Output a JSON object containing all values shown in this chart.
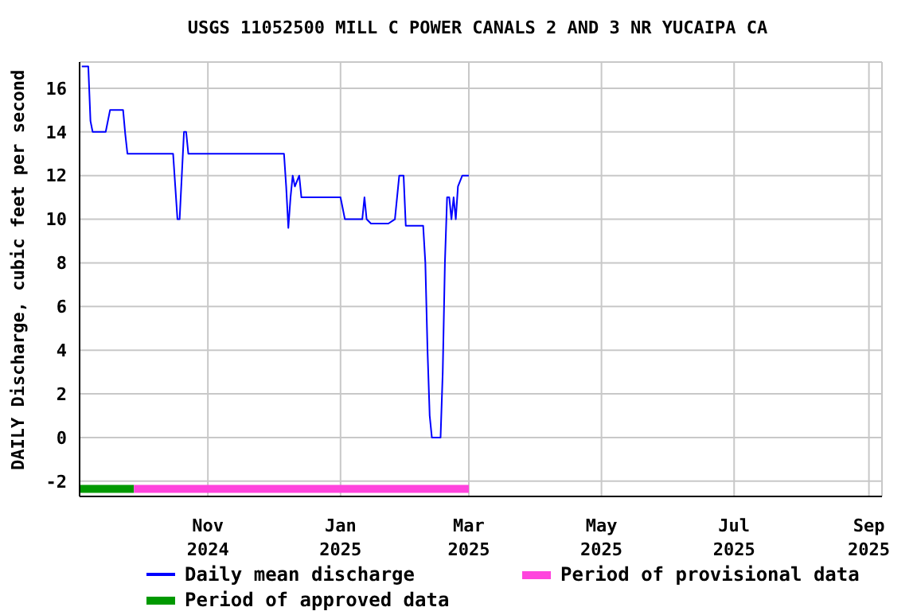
{
  "chart_data": {
    "type": "line",
    "title": "USGS 11052500 MILL C POWER CANALS 2 AND 3 NR YUCAIPA CA",
    "ylabel": "DAILY Discharge, cubic feet per second",
    "x": [
      "2024-09-04",
      "2024-09-07",
      "2024-09-08",
      "2024-09-09",
      "2024-09-15",
      "2024-09-17",
      "2024-09-23",
      "2024-09-24",
      "2024-09-25",
      "2024-10-16",
      "2024-10-17",
      "2024-10-18",
      "2024-10-19",
      "2024-10-20",
      "2024-10-21",
      "2024-10-22",
      "2024-10-23",
      "2024-12-06",
      "2024-12-07",
      "2024-12-08",
      "2024-12-09",
      "2024-12-10",
      "2024-12-11",
      "2024-12-13",
      "2024-12-14",
      "2025-01-01",
      "2025-01-03",
      "2025-01-11",
      "2025-01-12",
      "2025-01-13",
      "2025-01-15",
      "2025-01-23",
      "2025-01-26",
      "2025-01-27",
      "2025-01-28",
      "2025-01-30",
      "2025-01-31",
      "2025-02-08",
      "2025-02-09",
      "2025-02-10",
      "2025-02-11",
      "2025-02-12",
      "2025-02-16",
      "2025-02-17",
      "2025-02-18",
      "2025-02-19",
      "2025-02-20",
      "2025-02-21",
      "2025-02-22",
      "2025-02-23",
      "2025-02-24",
      "2025-02-26",
      "2025-03-01"
    ],
    "series": [
      {
        "name": "Daily mean discharge",
        "color": "#0000ff",
        "values": [
          17,
          17,
          14.5,
          14,
          14,
          15,
          15,
          13.9,
          13,
          13,
          11.5,
          10,
          10,
          12,
          14,
          14,
          13,
          13,
          11.5,
          9.6,
          11,
          12,
          11.5,
          12,
          11,
          11,
          10,
          10,
          11,
          10,
          9.8,
          9.8,
          10,
          11,
          12,
          12,
          9.7,
          9.7,
          8,
          4,
          1,
          0,
          0,
          3,
          8,
          11,
          11,
          10,
          11,
          10,
          11.5,
          12,
          12
        ]
      },
      {
        "name": "Period of approved data",
        "color": "#009900",
        "x": [
          "2024-09-03",
          "2024-09-28"
        ],
        "values": [
          -2.35,
          -2.35
        ]
      },
      {
        "name": "Period of provisional data",
        "color": "#ff44dd",
        "x": [
          "2024-09-28",
          "2025-03-01"
        ],
        "values": [
          -2.35,
          -2.35
        ]
      }
    ],
    "xlim": [
      "2024-09-03",
      "2025-09-07"
    ],
    "xticks": [
      {
        "value": "2024-11-01",
        "label": "Nov 2024"
      },
      {
        "value": "2025-01-01",
        "label": "Jan 2025"
      },
      {
        "value": "2025-03-01",
        "label": "Mar 2025"
      },
      {
        "value": "2025-05-01",
        "label": "May 2025"
      },
      {
        "value": "2025-07-01",
        "label": "Jul 2025"
      },
      {
        "value": "2025-09-01",
        "label": "Sep 2025"
      }
    ],
    "ylim": [
      -2.7,
      17.2
    ],
    "yticks": [
      -2,
      0,
      2,
      4,
      6,
      8,
      10,
      12,
      14,
      16
    ],
    "grid": true,
    "legend": "bottom",
    "line_style": "solid",
    "marker": "none"
  }
}
